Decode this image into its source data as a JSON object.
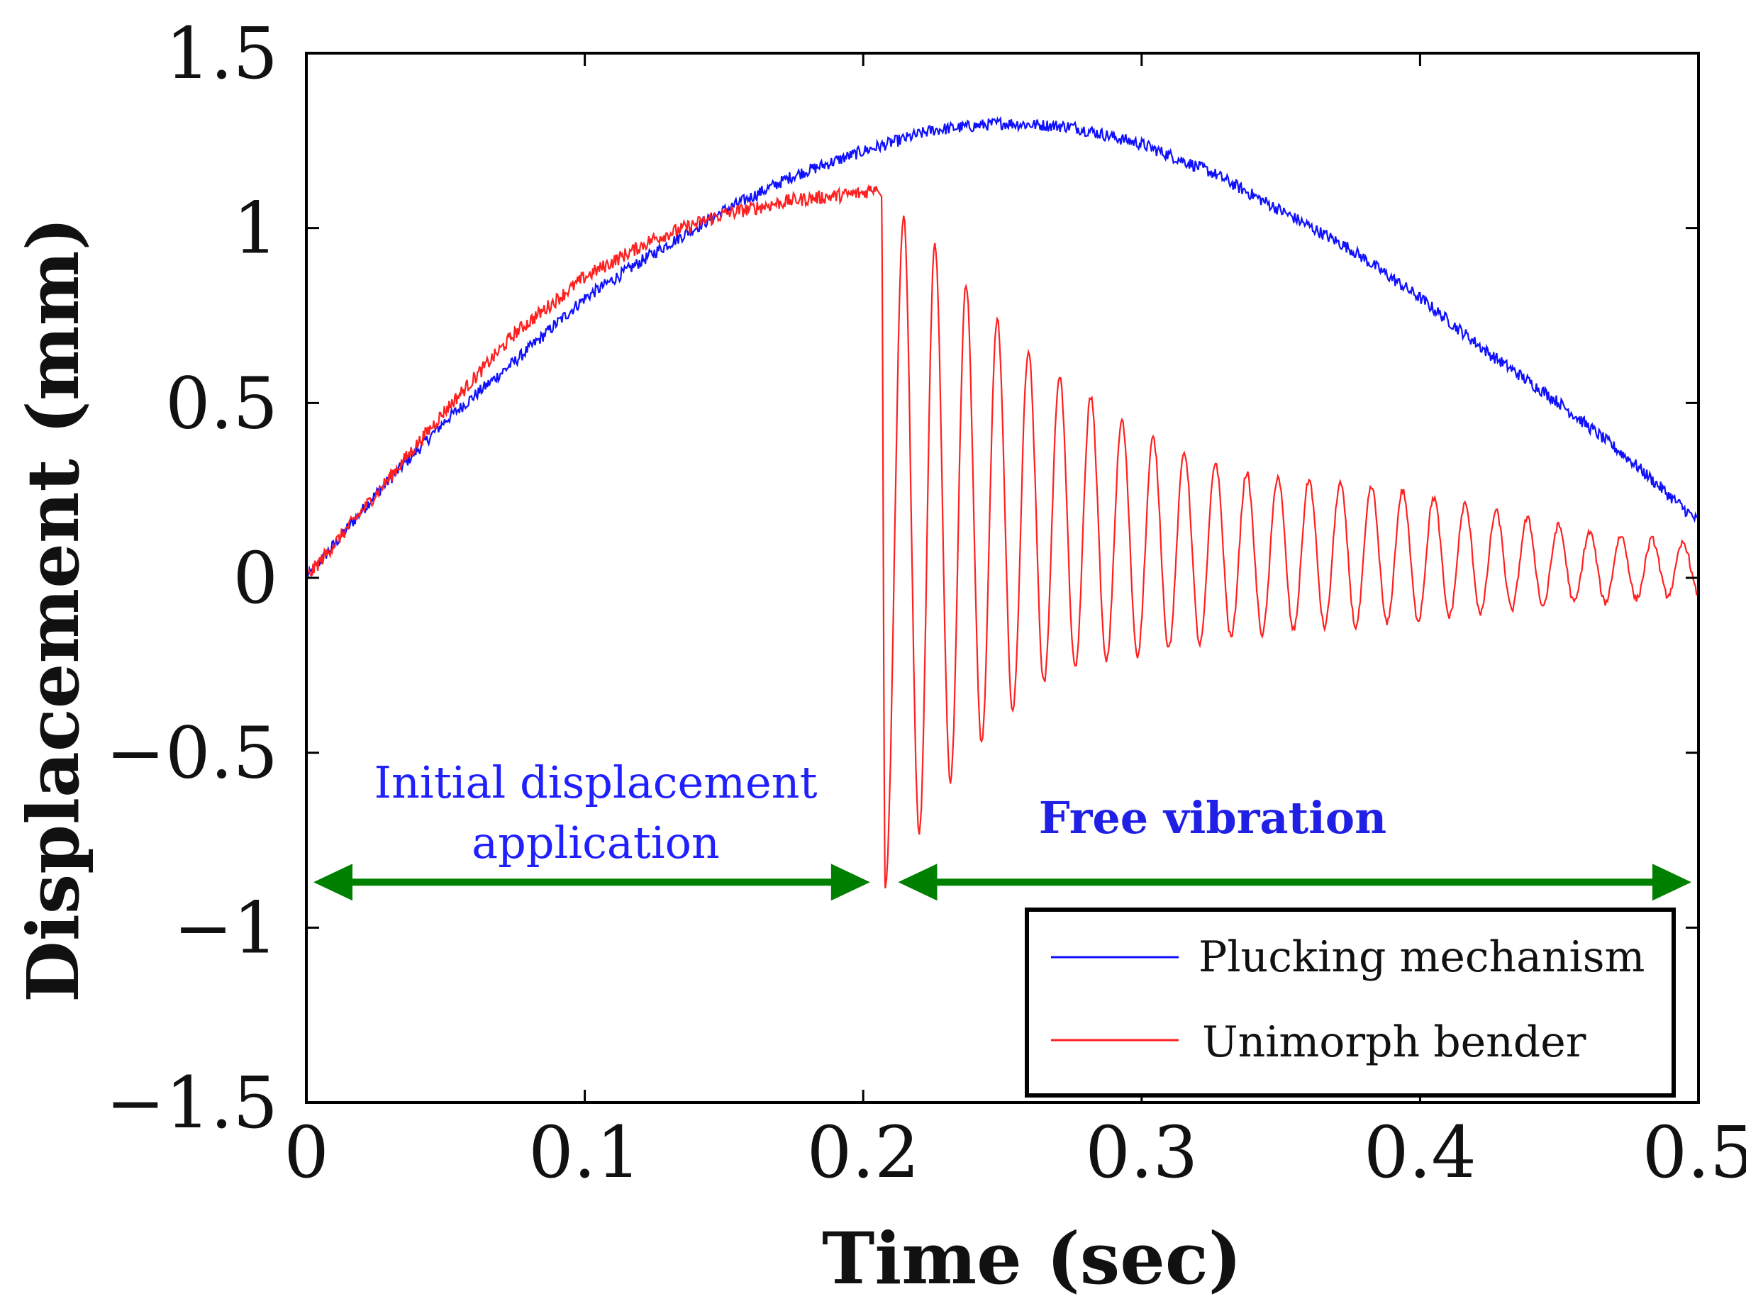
{
  "chart_data": {
    "type": "line",
    "xlabel": "Time (sec)",
    "ylabel": "Displacement (mm)",
    "xlim": [
      0,
      0.5
    ],
    "ylim": [
      -1.5,
      1.5
    ],
    "x_ticks": [
      "0",
      "0.1",
      "0.2",
      "0.3",
      "0.4",
      "0.5"
    ],
    "x_tick_values": [
      0,
      0.1,
      0.2,
      0.3,
      0.4,
      0.5
    ],
    "y_ticks": [
      "1.5",
      "1",
      "0.5",
      "0",
      "−0.5",
      "−1",
      "−1.5"
    ],
    "y_tick_values": [
      1.5,
      1,
      0.5,
      0,
      -0.5,
      -1,
      -1.5
    ],
    "grid": false,
    "legend_position": "bottom-right",
    "series": [
      {
        "name": "Plucking mechanism",
        "color": "#1010ff",
        "x": [
          0,
          0.025,
          0.05,
          0.075,
          0.1,
          0.125,
          0.15,
          0.175,
          0.2,
          0.225,
          0.25,
          0.275,
          0.3,
          0.325,
          0.35,
          0.375,
          0.4,
          0.425,
          0.45,
          0.475,
          0.5
        ],
        "y": [
          0.0,
          0.24,
          0.45,
          0.62,
          0.8,
          0.93,
          1.05,
          1.15,
          1.22,
          1.28,
          1.3,
          1.29,
          1.24,
          1.16,
          1.05,
          0.94,
          0.8,
          0.64,
          0.5,
          0.34,
          0.16
        ]
      },
      {
        "name": "Unimorph bender",
        "color": "#ff2020",
        "description_points": "ramp 0 to ~1.1 mm over 0–0.205 s, then damped oscillation",
        "x": [
          0,
          0.025,
          0.05,
          0.075,
          0.1,
          0.125,
          0.15,
          0.175,
          0.2,
          0.205
        ],
        "y": [
          0.0,
          0.24,
          0.48,
          0.7,
          0.86,
          0.97,
          1.04,
          1.08,
          1.1,
          1.12
        ],
        "free_vibration": {
          "start_time": 0.205,
          "period": 0.0112,
          "peaks": [
            1.03,
            0.95,
            0.84,
            0.74,
            0.65,
            0.58,
            0.52,
            0.45,
            0.4,
            0.36,
            0.33,
            0.3,
            0.29,
            0.28,
            0.27,
            0.26,
            0.25,
            0.23,
            0.21,
            0.19,
            0.17,
            0.15,
            0.13,
            0.12,
            0.11,
            0.1,
            0.09
          ],
          "troughs": [
            -0.88,
            -0.73,
            -0.58,
            -0.47,
            -0.38,
            -0.3,
            -0.26,
            -0.24,
            -0.22,
            -0.2,
            -0.19,
            -0.17,
            -0.16,
            -0.15,
            -0.14,
            -0.14,
            -0.13,
            -0.12,
            -0.11,
            -0.1,
            -0.09,
            -0.08,
            -0.07,
            -0.07,
            -0.06,
            -0.05,
            -0.05
          ]
        }
      }
    ],
    "annotations": [
      {
        "text_lines": [
          "Initial displacement",
          "application"
        ],
        "color": "#2020ff",
        "span": [
          0,
          0.205
        ]
      },
      {
        "text": "Free vibration",
        "color": "#1f1fe6",
        "bold": true,
        "span": [
          0.21,
          0.5
        ]
      }
    ],
    "arrow_color": "#008000",
    "arrow_y": -0.87
  }
}
